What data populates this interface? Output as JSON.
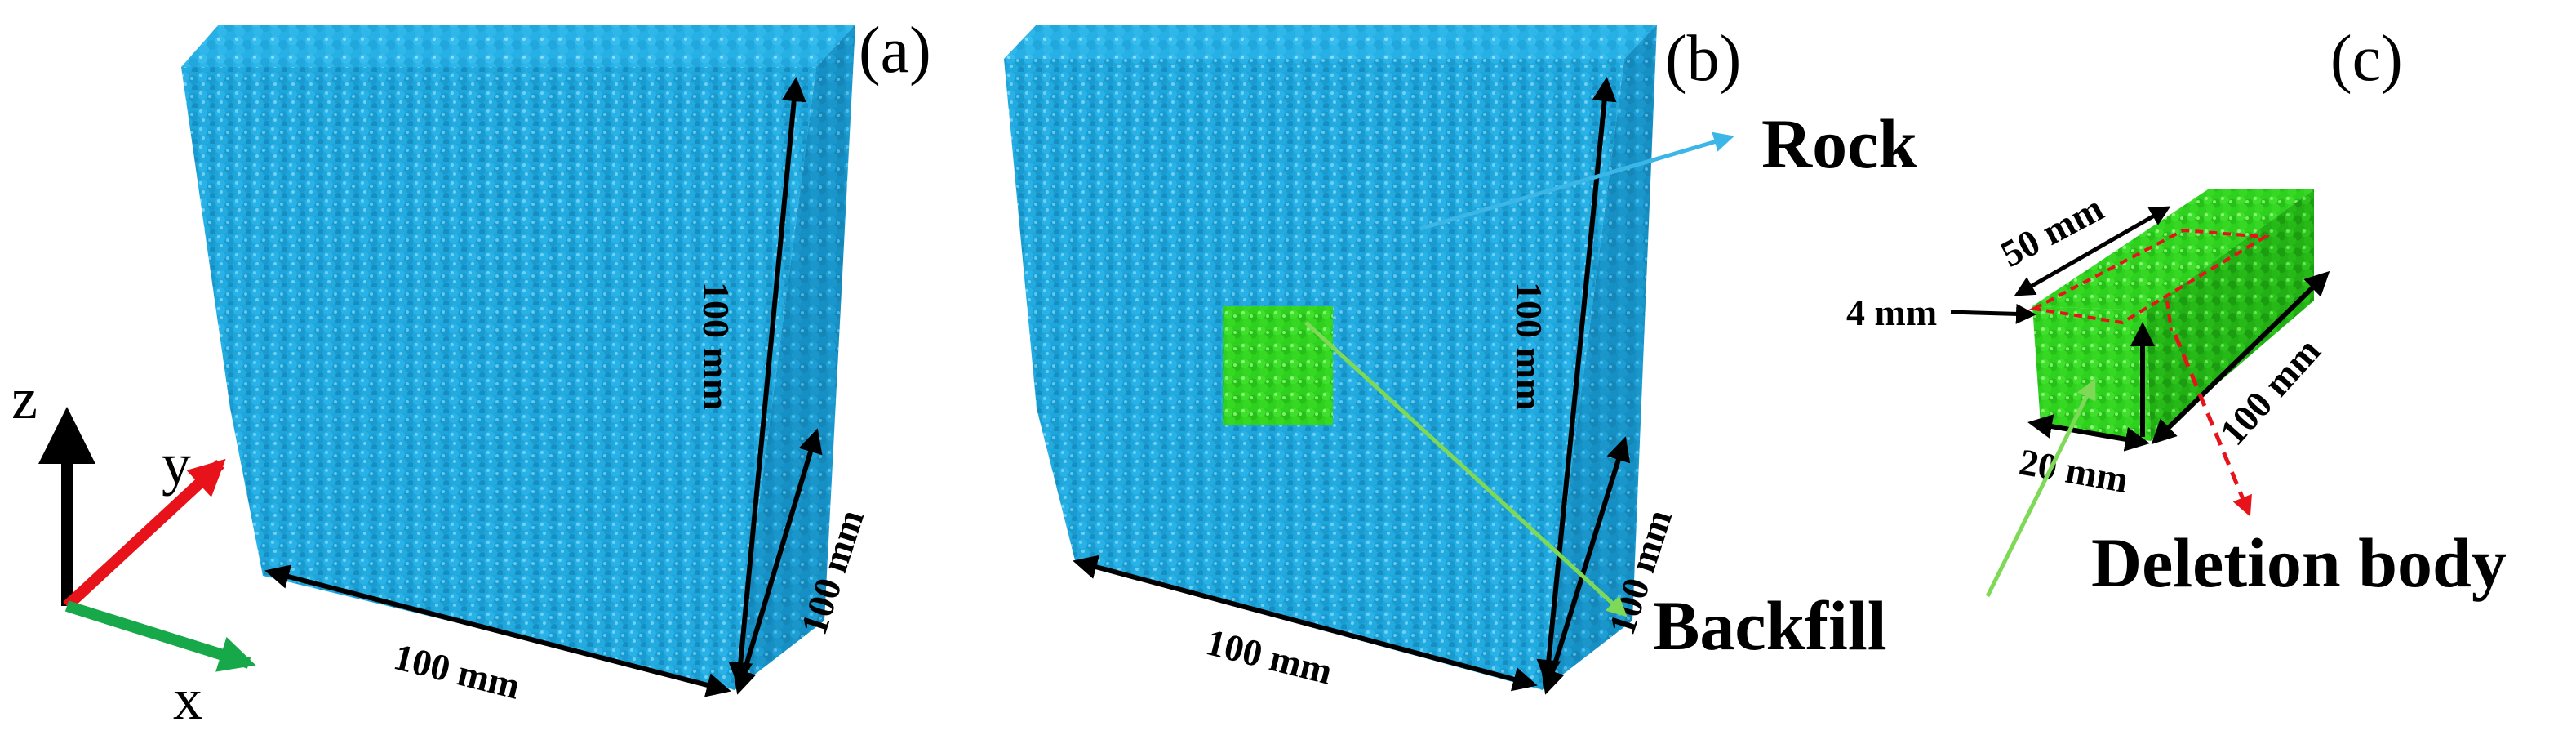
{
  "panels": {
    "a": {
      "label": "(a)",
      "dim_height": "100 mm",
      "dim_depth": "100 mm",
      "dim_width": "100 mm"
    },
    "b": {
      "label": "(b)",
      "dim_height": "100 mm",
      "dim_depth": "100 mm",
      "dim_width": "100 mm",
      "rock_label": "Rock",
      "backfill_label": "Backfill"
    },
    "c": {
      "label": "(c)",
      "dim_top": "50 mm",
      "dim_thickness": "4 mm",
      "dim_length": "100 mm",
      "dim_width": "20 mm",
      "deletion_label": "Deletion body"
    }
  },
  "axes": {
    "x": "x",
    "y": "y",
    "z": "z"
  },
  "colors": {
    "rock": "#1ea6dc",
    "rock_dark": "#0e7fb3",
    "backfill": "#2fd11f",
    "backfill_dark": "#1d9a12",
    "axis_x": "#17a84a",
    "axis_y": "#e8121a",
    "axis_z": "#000000",
    "rock_arrow": "#3bb6e6",
    "backfill_arrow": "#7ed957",
    "deletion_arrow": "#e8121a"
  }
}
